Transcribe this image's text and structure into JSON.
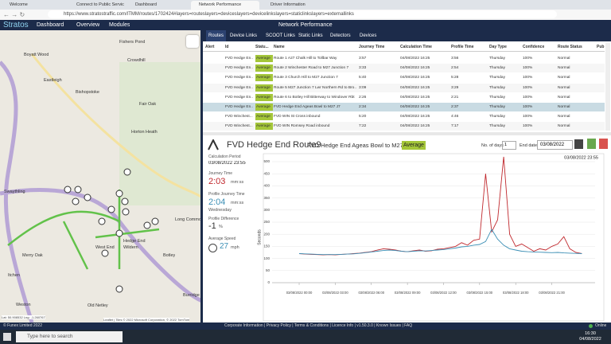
{
  "browser": {
    "tabs": [
      "Welcome",
      "Connect to Public Services",
      "Dashboard",
      "Network Performance",
      "Driver Information"
    ],
    "url": "https://www.stratostraffic.com/ITMM/routes/1702424#layers=routeslayers=deviceslayers=devicelinkslayers=staticlinkslayers=externallinks"
  },
  "app": {
    "brand": "Stratos",
    "nav": [
      "Dashboard",
      "Overview",
      "Modules"
    ],
    "page_title": "Network Performance"
  },
  "map": {
    "places": [
      "Fishers Pond",
      "Crowdhill",
      "Boyatt Wood",
      "Eastleigh",
      "Bishopstoke",
      "Fair Oak",
      "Horton Heath",
      "Swaythling",
      "West End",
      "Long Common",
      "Wildern",
      "Hedge End",
      "Botley",
      "Merry Oak",
      "Itchen",
      "Weston",
      "Old Netley",
      "Burridge"
    ],
    "coords": "Lat: 50.908532 Lng: -1.260767",
    "attribution": "Leaflet | Tiles © 2022 Microsoft Corporation, © 2022 TomTom"
  },
  "tabs": [
    "Routes",
    "Device Links",
    "SCOOT Links",
    "Static Links",
    "Detectors",
    "Devices"
  ],
  "table": {
    "columns": [
      "Alert",
      "Id",
      "Statu...",
      "Name",
      "Journey Time",
      "Calculation Time",
      "Profile Time",
      "Day Type",
      "Confidence",
      "Route Status",
      "Pub"
    ],
    "rows": [
      {
        "id": "FVD Hedge En...",
        "status": "Average",
        "name": "Route 1 A27 Chalk Hill to Tollbar Way",
        "journey": "3:57",
        "calc": "04/08/2022 16:25",
        "profile": "3:56",
        "day": "Thursday",
        "confidence": "100%",
        "route_status": "Normal"
      },
      {
        "id": "FVD Hedge En...",
        "status": "Average",
        "name": "Route 2 Winchester Road to M27 Junction 7",
        "journey": "3:33",
        "calc": "04/08/2022 16:25",
        "profile": "2:54",
        "day": "Thursday",
        "confidence": "100%",
        "route_status": "Normal"
      },
      {
        "id": "FVD Hedge En...",
        "status": "Average",
        "name": "Route 3 Church Hill to M27 Junction 7",
        "journey": "5:40",
        "calc": "04/08/2022 16:25",
        "profile": "5:28",
        "day": "Thursday",
        "confidence": "100%",
        "route_status": "Normal"
      },
      {
        "id": "FVD Hedge En...",
        "status": "Average",
        "name": "Route 5 M27 Junction 7 Lwr Northern Rd to Bro...",
        "journey": "3:09",
        "calc": "04/08/2022 16:25",
        "profile": "3:29",
        "day": "Thursday",
        "confidence": "100%",
        "route_status": "Normal"
      },
      {
        "id": "FVD Hedge En...",
        "status": "Average",
        "name": "Route 6 to Botley Hill Bitterway to Windover Rbt",
        "journey": "2:26",
        "calc": "04/08/2022 16:25",
        "profile": "2:21",
        "day": "Thursday",
        "confidence": "100%",
        "route_status": "Normal"
      },
      {
        "id": "FVD Hedge En...",
        "status": "Average",
        "name": "FVD Hedge End Ageas Bowl to M27 J7",
        "journey": "2:34",
        "calc": "04/08/2022 16:25",
        "profile": "2:37",
        "day": "Thursday",
        "confidence": "100%",
        "route_status": "Normal"
      },
      {
        "id": "FVD Winchest...",
        "status": "Average",
        "name": "FVD WIN St Cross inbound",
        "journey": "5:20",
        "calc": "04/08/2022 16:25",
        "profile": "4:46",
        "day": "Thursday",
        "confidence": "100%",
        "route_status": "Normal"
      },
      {
        "id": "FVD Winchest...",
        "status": "Average",
        "name": "FVD WIN Romsey Road inbound",
        "journey": "7:22",
        "calc": "04/08/2022 16:25",
        "profile": "7:17",
        "day": "Thursday",
        "confidence": "100%",
        "route_status": "Normal"
      }
    ]
  },
  "detail": {
    "route_id": "FVD Hedge End Route9",
    "route_name": "FVD Hedge End Ageas Bowl to M27 J7",
    "status": "Average",
    "days_label": "No. of days",
    "days": "1",
    "end_label": "End date",
    "end_date": "03/08/2022",
    "calc_label": "Calculation Period",
    "calc_value": "03/08/2022 23:55",
    "jt_label": "Journey Time",
    "jt_value": "2:03",
    "jt_unit": "mm:ss",
    "pjt_label": "Profile Journey Time",
    "pjt_value": "2:04",
    "pjt_unit": "mm:ss",
    "pjt_day": "Wednesday",
    "diff_label": "Profile Difference",
    "diff_value": "-1",
    "diff_unit": "%",
    "speed_label": "Average Speed",
    "speed_value": "27",
    "speed_unit": "mph"
  },
  "chart_data": {
    "type": "line",
    "ylabel": "Seconds",
    "timestamp": "03/08/2022 23:55",
    "x": [
      0,
      0.5,
      1,
      1.5,
      2,
      2.5,
      3,
      3.5,
      4,
      4.5,
      5,
      5.5,
      6,
      6.5,
      7,
      7.5,
      8,
      8.5,
      9,
      9.5,
      10,
      10.5,
      11,
      11.5,
      12,
      12.5,
      13,
      13.5,
      14,
      14.5,
      15,
      15.5,
      16,
      16.5,
      17,
      17.5,
      18,
      18.5,
      19,
      19.5,
      20,
      20.5,
      21,
      21.5,
      22,
      22.5,
      23,
      23.5
    ],
    "series": [
      {
        "color": "#c0282d",
        "values": [
          120,
          118,
          117,
          116,
          115,
          116,
          115,
          117,
          118,
          120,
          122,
          125,
          128,
          135,
          140,
          138,
          135,
          130,
          128,
          132,
          135,
          130,
          132,
          138,
          140,
          145,
          150,
          165,
          155,
          175,
          180,
          450,
          210,
          260,
          520,
          200,
          150,
          160,
          145,
          130,
          140,
          135,
          150,
          160,
          190,
          140,
          125,
          120
        ]
      },
      {
        "color": "#3c8fb5",
        "values": [
          120,
          119,
          118,
          117,
          116,
          116,
          116,
          117,
          118,
          119,
          121,
          124,
          127,
          130,
          133,
          135,
          133,
          130,
          128,
          130,
          132,
          131,
          133,
          135,
          137,
          140,
          143,
          148,
          150,
          155,
          158,
          170,
          220,
          180,
          155,
          140,
          135,
          130,
          128,
          127,
          126,
          125,
          124,
          125,
          123,
          122,
          121,
          120
        ]
      }
    ],
    "xlim": [
      -2.25,
      24.6
    ],
    "xticks": [
      {
        "value": 0,
        "label": "03/08/2022 00:00"
      },
      {
        "value": 3,
        "label": "03/08/2022 03:00"
      },
      {
        "value": 6,
        "label": "03/08/2022 06:00"
      },
      {
        "value": 9,
        "label": "03/08/2022 09:00"
      },
      {
        "value": 12,
        "label": "03/08/2022 12:00"
      },
      {
        "value": 15,
        "label": "03/08/2022 15:00"
      },
      {
        "value": 18,
        "label": "03/08/2022 18:00"
      },
      {
        "value": 21,
        "label": "03/08/2022 21:00"
      }
    ],
    "ylim": [
      0,
      500
    ],
    "yticks": [
      0,
      50,
      100,
      150,
      200,
      250,
      300,
      350,
      400,
      450,
      500
    ],
    "grid": true
  },
  "footer": {
    "copyright": "© Funex Limited 2022",
    "links": "Corporate Information | Privacy Policy | Terms & Conditions | Licence Info | v1.50.3.0 | Known Issues | FAQ",
    "status": "Online"
  },
  "taskbar": {
    "search": "Type here to search",
    "time": "16:30",
    "date": "04/08/2022"
  }
}
